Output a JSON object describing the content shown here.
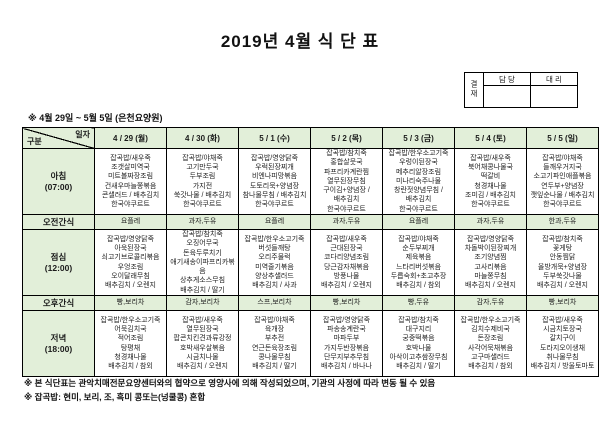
{
  "page": {
    "title": "2019년 4월 식 단 표",
    "subtitle": "※ 4월 29일 ~ 5월 5일 (은천요양원)",
    "footnotes": [
      "※ 본 식단표는 관악치매전문요양센터와의 협약으로 영양사에 의해 작성되었으며, 기관의 사정에 따라 변동 될 수 있음",
      "※ 잡곡밥: 현미, 보리, 조, 흑미 콩또는(넝쿨콩) 혼합"
    ]
  },
  "approval": {
    "stamp_label": "결재",
    "columns": [
      "담 당",
      "대 리"
    ]
  },
  "colors": {
    "header_green": "#e2efd9",
    "border": "#000000",
    "text": "#1a1a1a"
  },
  "table": {
    "corner": {
      "top": "일자",
      "bottom": "구분"
    },
    "columns": [
      "4 / 29 (월)",
      "4 / 30 (화)",
      "5 / 1 (수)",
      "5 / 2 (목)",
      "5 / 3 (금)",
      "5 / 4 (토)",
      "5 / 5 (일)"
    ],
    "rows": [
      {
        "label": "아침",
        "time": "(07:00)",
        "kind": "meal",
        "cells": [
          "잡곡밥/새우죽\n조갯살미역국\n미트볼짜장조림\n건새우마늘쫑볶음\n콘샐러드 / 배추김치\n한국야쿠르트",
          "잡곡밥/야채죽\n고기만두국\n두부조림\n가지전\n쑥갓나물 / 배추김치\n한국야쿠르트",
          "잡곡밥/영양닭죽\n우럭된장찌개\n비엔나피망볶음\n도토리묵+양념장\n참나물무침 / 배추김치\n한국야쿠르트",
          "잡곡밥/참치죽\n홍합살뭇국\n파프리카계란찜\n열무된장무침\n구이김+양념장 /\n배추김치\n한국야쿠르트",
          "잡곡밥/한우소고기죽\n우렁이된장국\n메추리알장조림\n미나리숙주나물\n창란젓양념무침 /\n배추김치\n한국야쿠르트",
          "잡곡밥/새우죽\n북어채콩나물국\n떡갈비\n청경채나물\n조미김 / 배추김치\n한국야쿠르트",
          "잡곡밥/야채죽\n들깨우거지국\n소고기파인애플볶음\n연두부+양념장\n깻잎순나물 / 배추김치\n한국야쿠르트"
        ]
      },
      {
        "label": "오전간식",
        "time": "",
        "kind": "snack",
        "cells": [
          "요플레",
          "과자,두유",
          "요플레",
          "과자,두유",
          "요플레",
          "과자,두유",
          "한과,두유"
        ]
      },
      {
        "label": "점심",
        "time": "(12:00)",
        "kind": "meal",
        "cells": [
          "잡곡밥/영양닭죽\n아욱된장국\n쇠고기브로콜리볶음\n우엉조림\n오이달래무침\n배추김치 / 오렌지",
          "잡곡밥/참치죽\n오징어무국\n돈육두루치기\n애기새송이파프리카볶음\n상추게소스무침\n배추김치 / 딸기",
          "잡곡밥/한우소고기죽\n버섯들깨탕\n오리주물럭\n미역줄기볶음\n양상추샐러드\n배추김치 / 사과",
          "잡곡밥/새우죽\n근대된장국\n코다리양념조림\n당근감자채볶음\n방풍나물\n배추김치 / 오렌지",
          "잡곡밥/야채죽\n순두부찌개\n제육볶음\n느타리버섯볶음\n두릅숙회+초고추장\n배추김치 / 참외",
          "잡곡밥/영양닭죽\n차돌박이된장찌개\n조기양념찜\n고사리볶음\n마늘쫑무침\n배추김치 / 오렌지",
          "잡곡밥/참치죽\n꽃게탕\n안동찜닭\n올방개묵+양념장\n두부쑥갓나물\n배추김치 / 오렌지"
        ]
      },
      {
        "label": "오후간식",
        "time": "",
        "kind": "snack",
        "cells": [
          "빵,보리차",
          "감자,보리차",
          "스프,보리차",
          "빵,보리차",
          "빵,두유",
          "감자,두유",
          "빵,보리차"
        ]
      },
      {
        "label": "저녁",
        "time": "(18:00)",
        "kind": "meal",
        "cells": [
          "잡곡밥/한우소고기죽\n어묵김치국\n적어조림\n탕평채\n청경채나물\n배추김치 / 참외",
          "잡곡밥/새우죽\n열무된장국\n팝콘치킨견과류강정\n호박새우살볶음\n시금치나물\n배추김치 / 오렌지",
          "잡곡밥/야채죽\n육개장\n부추전\n연근돈육장조림\n콩나물무침\n배추김치 / 딸기",
          "잡곡밥/영양닭죽\n파송송계란국\n마파두부\n가지두반장볶음\n단무지부추무침\n배추김치 / 바나나",
          "잡곡밥/참치죽\n대구지리\n궁중떡볶음\n호박나물\n아삭이고추쌈장무침\n배추김치 / 딸기",
          "잡곡밥/한우소고기죽\n김치수제비국\n돈장조림\n사각어묵채볶음\n고구마샐러드\n배추김치 / 참외",
          "잡곡밥/새우죽\n시금치토장국\n갈치구이\n도라지오이생채\n취나물무침\n배추김치 / 방울토마토"
        ]
      }
    ]
  }
}
